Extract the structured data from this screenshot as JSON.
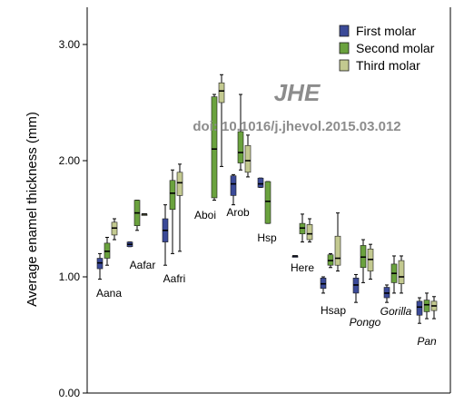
{
  "chart_data": {
    "type": "box",
    "ylabel": "Average enamel thickness (mm)",
    "ylim": [
      0,
      3.0
    ],
    "yticks": [
      "0.00",
      "1.00",
      "2.00",
      "3.00"
    ],
    "legend": {
      "placement": "top-right",
      "entries": [
        {
          "name": "First molar",
          "color": "#3b4a98"
        },
        {
          "name": "Second molar",
          "color": "#6aa23e"
        },
        {
          "name": "Third molar",
          "color": "#c3c990"
        }
      ]
    },
    "watermark": {
      "title": "JHE",
      "doi": "doi: 10.1016/j.jhevol.2015.03.012"
    },
    "groups": [
      {
        "label": "Aana",
        "italic": false,
        "boxes": [
          {
            "molar": "First molar",
            "whisker_low": 0.98,
            "q1": 1.07,
            "median": 1.12,
            "q3": 1.16,
            "whisker_high": 1.2
          },
          {
            "molar": "Second molar",
            "whisker_low": 1.1,
            "q1": 1.16,
            "median": 1.22,
            "q3": 1.29,
            "whisker_high": 1.34
          },
          {
            "molar": "Third molar",
            "whisker_low": 1.32,
            "q1": 1.36,
            "median": 1.42,
            "q3": 1.47,
            "whisker_high": 1.5
          }
        ]
      },
      {
        "label": "Aafar",
        "italic": false,
        "boxes": [
          {
            "molar": "First molar",
            "whisker_low": 1.26,
            "q1": 1.26,
            "median": 1.28,
            "q3": 1.3,
            "whisker_high": 1.3
          },
          {
            "molar": "Second molar",
            "whisker_low": 1.4,
            "q1": 1.44,
            "median": 1.55,
            "q3": 1.66,
            "whisker_high": 1.66
          },
          {
            "molar": "Third molar",
            "whisker_low": 1.54,
            "q1": 1.54,
            "median": 1.54,
            "q3": 1.54,
            "whisker_high": 1.54
          }
        ]
      },
      {
        "label": "Aafri",
        "italic": false,
        "boxes": [
          {
            "molar": "First molar",
            "whisker_low": 1.1,
            "q1": 1.3,
            "median": 1.4,
            "q3": 1.5,
            "whisker_high": 1.62
          },
          {
            "molar": "Second molar",
            "whisker_low": 1.2,
            "q1": 1.58,
            "median": 1.72,
            "q3": 1.83,
            "whisker_high": 1.92
          },
          {
            "molar": "Third molar",
            "whisker_low": 1.22,
            "q1": 1.7,
            "median": 1.81,
            "q3": 1.9,
            "whisker_high": 1.97
          }
        ]
      },
      {
        "label": "Aboi",
        "italic": false,
        "boxes": [
          {
            "molar": "First molar",
            "whisker_low": null,
            "q1": null,
            "median": null,
            "q3": null,
            "whisker_high": null
          },
          {
            "molar": "Second molar",
            "whisker_low": 1.66,
            "q1": 1.68,
            "median": 2.1,
            "q3": 2.55,
            "whisker_high": 2.57
          },
          {
            "molar": "Third molar",
            "whisker_low": 1.95,
            "q1": 2.5,
            "median": 2.6,
            "q3": 2.67,
            "whisker_high": 2.74
          }
        ]
      },
      {
        "label": "Arob",
        "italic": false,
        "boxes": [
          {
            "molar": "First molar",
            "whisker_low": 1.62,
            "q1": 1.7,
            "median": 1.8,
            "q3": 1.87,
            "whisker_high": 1.88
          },
          {
            "molar": "Second molar",
            "whisker_low": 1.92,
            "q1": 1.98,
            "median": 2.07,
            "q3": 2.25,
            "whisker_high": 2.57
          },
          {
            "molar": "Third molar",
            "whisker_low": 1.86,
            "q1": 1.9,
            "median": 2.0,
            "q3": 2.13,
            "whisker_high": 2.22
          }
        ]
      },
      {
        "label": "Hsp",
        "italic": false,
        "boxes": [
          {
            "molar": "First molar",
            "whisker_low": 1.77,
            "q1": 1.77,
            "median": 1.8,
            "q3": 1.85,
            "whisker_high": 1.85
          },
          {
            "molar": "Second molar",
            "whisker_low": 1.46,
            "q1": 1.46,
            "median": 1.65,
            "q3": 1.82,
            "whisker_high": 1.82
          },
          {
            "molar": "Third molar",
            "whisker_low": null,
            "q1": null,
            "median": null,
            "q3": null,
            "whisker_high": null
          }
        ]
      },
      {
        "label": "Here",
        "italic": false,
        "boxes": [
          {
            "molar": "First molar",
            "whisker_low": 1.18,
            "q1": 1.18,
            "median": 1.18,
            "q3": 1.18,
            "whisker_high": 1.18
          },
          {
            "molar": "Second molar",
            "whisker_low": 1.3,
            "q1": 1.37,
            "median": 1.42,
            "q3": 1.46,
            "whisker_high": 1.54
          },
          {
            "molar": "Third molar",
            "whisker_low": 1.3,
            "q1": 1.32,
            "median": 1.37,
            "q3": 1.45,
            "whisker_high": 1.5
          }
        ]
      },
      {
        "label": "Hsap",
        "italic": false,
        "boxes": [
          {
            "molar": "First molar",
            "whisker_low": 0.86,
            "q1": 0.9,
            "median": 0.94,
            "q3": 0.99,
            "whisker_high": 1.0
          },
          {
            "molar": "Second molar",
            "whisker_low": 1.08,
            "q1": 1.1,
            "median": 1.14,
            "q3": 1.19,
            "whisker_high": 1.2
          },
          {
            "molar": "Third molar",
            "whisker_low": 1.05,
            "q1": 1.1,
            "median": 1.16,
            "q3": 1.35,
            "whisker_high": 1.55
          }
        ]
      },
      {
        "label": "Pongo",
        "italic": true,
        "boxes": [
          {
            "molar": "First molar",
            "whisker_low": 0.78,
            "q1": 0.86,
            "median": 0.93,
            "q3": 0.99,
            "whisker_high": 1.02
          },
          {
            "molar": "Second molar",
            "whisker_low": 0.95,
            "q1": 1.08,
            "median": 1.17,
            "q3": 1.27,
            "whisker_high": 1.32
          },
          {
            "molar": "Third molar",
            "whisker_low": 0.98,
            "q1": 1.05,
            "median": 1.15,
            "q3": 1.24,
            "whisker_high": 1.28
          }
        ]
      },
      {
        "label": "Gorilla",
        "italic": true,
        "boxes": [
          {
            "molar": "First molar",
            "whisker_low": 0.78,
            "q1": 0.82,
            "median": 0.86,
            "q3": 0.91,
            "whisker_high": 0.93
          },
          {
            "molar": "Second molar",
            "whisker_low": 0.86,
            "q1": 0.95,
            "median": 1.03,
            "q3": 1.11,
            "whisker_high": 1.18
          },
          {
            "molar": "Third molar",
            "whisker_low": 0.86,
            "q1": 0.94,
            "median": 1.0,
            "q3": 1.14,
            "whisker_high": 1.18
          }
        ]
      },
      {
        "label": "Pan",
        "italic": true,
        "boxes": [
          {
            "molar": "First molar",
            "whisker_low": 0.6,
            "q1": 0.67,
            "median": 0.74,
            "q3": 0.79,
            "whisker_high": 0.82
          },
          {
            "molar": "Second molar",
            "whisker_low": 0.64,
            "q1": 0.7,
            "median": 0.76,
            "q3": 0.8,
            "whisker_high": 0.86
          },
          {
            "molar": "Third molar",
            "whisker_low": 0.64,
            "q1": 0.71,
            "median": 0.75,
            "q3": 0.79,
            "whisker_high": 0.83
          }
        ]
      }
    ]
  }
}
